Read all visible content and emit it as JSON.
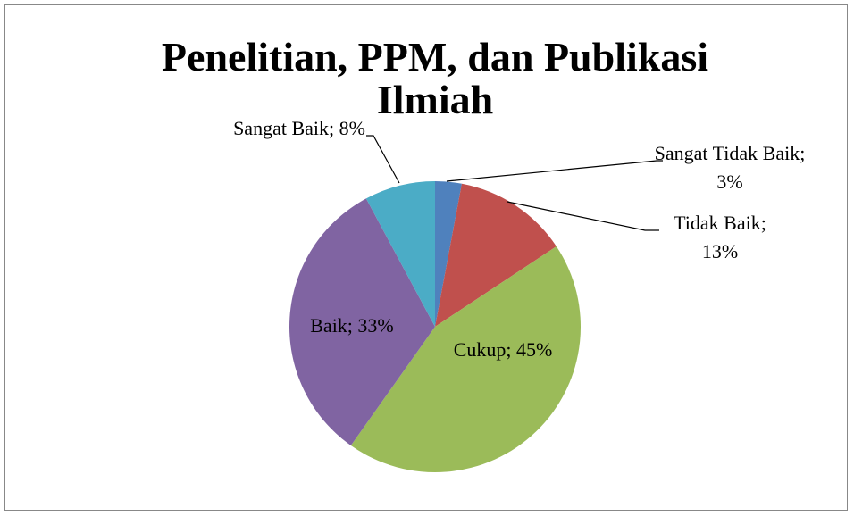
{
  "chart_data": {
    "type": "pie",
    "title": "Penelitian, PPM, dan Publikasi Ilmiah",
    "values": [
      3,
      13,
      45,
      33,
      8
    ],
    "value_labels": [
      "Sangat Tidak Baik; 3%",
      "Tidak Baik; 13%",
      "Cukup; 45%",
      "Baik; 33%",
      "Sangat Baik; 8%"
    ],
    "colors": [
      "#4f81bd",
      "#c0504d",
      "#9bbb59",
      "#8064a2",
      "#4bacc6"
    ]
  }
}
